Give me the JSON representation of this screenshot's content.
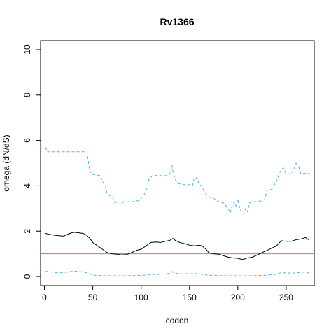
{
  "chart_data": {
    "type": "line",
    "title": "Rv1366",
    "xlabel": "codon",
    "ylabel": "omega (dN/dS)",
    "xlim": [
      -4,
      279
    ],
    "ylim": [
      -0.4,
      10.4
    ],
    "xticks": [
      0,
      50,
      100,
      150,
      200,
      250
    ],
    "yticks": [
      0,
      2,
      4,
      6,
      8,
      10
    ],
    "grid": false,
    "reference_line": {
      "y": 1,
      "color": "#c46ea8"
    },
    "series": [
      {
        "style": "solid",
        "color": "#000000",
        "points": [
          [
            1,
            1.9
          ],
          [
            5,
            1.86
          ],
          [
            10,
            1.82
          ],
          [
            15,
            1.8
          ],
          [
            20,
            1.78
          ],
          [
            25,
            1.88
          ],
          [
            30,
            1.95
          ],
          [
            35,
            1.93
          ],
          [
            40,
            1.9
          ],
          [
            43,
            1.84
          ],
          [
            47,
            1.68
          ],
          [
            50,
            1.5
          ],
          [
            55,
            1.35
          ],
          [
            60,
            1.2
          ],
          [
            65,
            1.05
          ],
          [
            70,
            1.0
          ],
          [
            75,
            0.98
          ],
          [
            80,
            0.95
          ],
          [
            85,
            0.97
          ],
          [
            90,
            1.05
          ],
          [
            95,
            1.15
          ],
          [
            100,
            1.2
          ],
          [
            105,
            1.35
          ],
          [
            110,
            1.5
          ],
          [
            115,
            1.52
          ],
          [
            120,
            1.5
          ],
          [
            125,
            1.55
          ],
          [
            130,
            1.6
          ],
          [
            133,
            1.68
          ],
          [
            135,
            1.6
          ],
          [
            140,
            1.5
          ],
          [
            145,
            1.45
          ],
          [
            150,
            1.38
          ],
          [
            155,
            1.35
          ],
          [
            160,
            1.38
          ],
          [
            163,
            1.35
          ],
          [
            167,
            1.2
          ],
          [
            170,
            1.05
          ],
          [
            175,
            1.0
          ],
          [
            180,
            0.98
          ],
          [
            185,
            0.92
          ],
          [
            190,
            0.85
          ],
          [
            195,
            0.82
          ],
          [
            200,
            0.8
          ],
          [
            205,
            0.75
          ],
          [
            210,
            0.82
          ],
          [
            215,
            0.85
          ],
          [
            220,
            0.95
          ],
          [
            225,
            1.05
          ],
          [
            230,
            1.15
          ],
          [
            235,
            1.25
          ],
          [
            240,
            1.35
          ],
          [
            245,
            1.58
          ],
          [
            250,
            1.55
          ],
          [
            255,
            1.55
          ],
          [
            260,
            1.62
          ],
          [
            265,
            1.65
          ],
          [
            270,
            1.72
          ],
          [
            274,
            1.6
          ]
        ]
      },
      {
        "style": "dashed",
        "color": "#4fb3e8",
        "points": [
          [
            1,
            5.7
          ],
          [
            3,
            5.5
          ],
          [
            10,
            5.5
          ],
          [
            20,
            5.5
          ],
          [
            30,
            5.5
          ],
          [
            40,
            5.5
          ],
          [
            44,
            5.5
          ],
          [
            45,
            5.2
          ],
          [
            46,
            4.9
          ],
          [
            47,
            4.6
          ],
          [
            50,
            4.5
          ],
          [
            58,
            4.45
          ],
          [
            60,
            4.2
          ],
          [
            63,
            4.0
          ],
          [
            65,
            3.6
          ],
          [
            70,
            3.55
          ],
          [
            73,
            3.3
          ],
          [
            75,
            3.2
          ],
          [
            80,
            3.2
          ],
          [
            82,
            3.3
          ],
          [
            90,
            3.3
          ],
          [
            98,
            3.35
          ],
          [
            100,
            3.45
          ],
          [
            103,
            3.6
          ],
          [
            105,
            3.8
          ],
          [
            107,
            4.0
          ],
          [
            108,
            4.3
          ],
          [
            112,
            4.45
          ],
          [
            115,
            4.45
          ],
          [
            118,
            4.5
          ],
          [
            120,
            4.45
          ],
          [
            125,
            4.45
          ],
          [
            128,
            4.45
          ],
          [
            130,
            4.55
          ],
          [
            132,
            4.9
          ],
          [
            133,
            4.6
          ],
          [
            135,
            4.3
          ],
          [
            138,
            4.1
          ],
          [
            145,
            4.05
          ],
          [
            150,
            4.05
          ],
          [
            153,
            4.0
          ],
          [
            155,
            4.35
          ],
          [
            158,
            4.35
          ],
          [
            160,
            4.05
          ],
          [
            163,
            4.0
          ],
          [
            165,
            3.75
          ],
          [
            168,
            3.6
          ],
          [
            170,
            3.5
          ],
          [
            175,
            3.45
          ],
          [
            180,
            3.3
          ],
          [
            185,
            3.25
          ],
          [
            190,
            3.0
          ],
          [
            192,
            2.8
          ],
          [
            194,
            3.1
          ],
          [
            196,
            3.3
          ],
          [
            198,
            3.1
          ],
          [
            200,
            3.4
          ],
          [
            202,
            3.0
          ],
          [
            204,
            2.8
          ],
          [
            206,
            2.75
          ],
          [
            208,
            3.0
          ],
          [
            210,
            2.85
          ],
          [
            212,
            3.25
          ],
          [
            215,
            3.3
          ],
          [
            220,
            3.3
          ],
          [
            225,
            3.35
          ],
          [
            228,
            3.4
          ],
          [
            230,
            3.8
          ],
          [
            235,
            3.85
          ],
          [
            240,
            4.2
          ],
          [
            243,
            4.55
          ],
          [
            245,
            4.7
          ],
          [
            247,
            4.8
          ],
          [
            250,
            4.5
          ],
          [
            255,
            4.55
          ],
          [
            258,
            4.7
          ],
          [
            260,
            5.0
          ],
          [
            263,
            4.85
          ],
          [
            265,
            4.55
          ],
          [
            270,
            4.55
          ],
          [
            274,
            4.55
          ]
        ]
      },
      {
        "style": "dashed",
        "color": "#4fb3e8",
        "points": [
          [
            1,
            0.22
          ],
          [
            5,
            0.22
          ],
          [
            10,
            0.18
          ],
          [
            15,
            0.15
          ],
          [
            20,
            0.18
          ],
          [
            25,
            0.2
          ],
          [
            30,
            0.24
          ],
          [
            35,
            0.22
          ],
          [
            40,
            0.2
          ],
          [
            45,
            0.15
          ],
          [
            50,
            0.06
          ],
          [
            55,
            0.05
          ],
          [
            60,
            0.04
          ],
          [
            65,
            0.03
          ],
          [
            70,
            0.03
          ],
          [
            80,
            0.03
          ],
          [
            90,
            0.04
          ],
          [
            100,
            0.05
          ],
          [
            110,
            0.08
          ],
          [
            120,
            0.1
          ],
          [
            125,
            0.12
          ],
          [
            130,
            0.14
          ],
          [
            132,
            0.22
          ],
          [
            134,
            0.16
          ],
          [
            140,
            0.12
          ],
          [
            150,
            0.12
          ],
          [
            155,
            0.13
          ],
          [
            160,
            0.12
          ],
          [
            165,
            0.08
          ],
          [
            170,
            0.05
          ],
          [
            175,
            0.05
          ],
          [
            180,
            0.04
          ],
          [
            190,
            0.03
          ],
          [
            200,
            0.03
          ],
          [
            210,
            0.03
          ],
          [
            220,
            0.04
          ],
          [
            230,
            0.06
          ],
          [
            240,
            0.1
          ],
          [
            245,
            0.18
          ],
          [
            250,
            0.15
          ],
          [
            255,
            0.15
          ],
          [
            260,
            0.16
          ],
          [
            265,
            0.18
          ],
          [
            270,
            0.2
          ],
          [
            274,
            0.15
          ]
        ]
      }
    ]
  }
}
